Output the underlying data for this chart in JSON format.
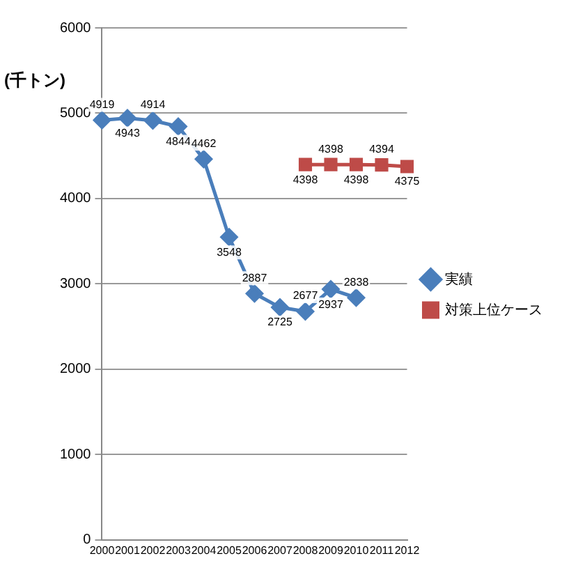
{
  "chart_data": {
    "type": "line",
    "ylabel": "(千トン)",
    "categories": [
      "2000",
      "2001",
      "2002",
      "2003",
      "2004",
      "2005",
      "2006",
      "2007",
      "2008",
      "2009",
      "2010",
      "2011",
      "2012"
    ],
    "series": [
      {
        "name": "実績",
        "color": "#4a7ebb",
        "marker": "diamond",
        "values": [
          4919,
          4943,
          4914,
          4844,
          4462,
          3548,
          2887,
          2725,
          2677,
          2937,
          2838,
          null,
          null
        ]
      },
      {
        "name": "対策上位ケース",
        "color": "#be4b48",
        "marker": "square",
        "values": [
          null,
          null,
          null,
          null,
          null,
          null,
          null,
          null,
          4398,
          4398,
          4398,
          4394,
          4375
        ]
      }
    ],
    "ylim": [
      0,
      6000
    ],
    "yticks": [
      0,
      1000,
      2000,
      3000,
      4000,
      5000,
      6000
    ],
    "grid": "y",
    "legend": "right",
    "data_labels": true
  }
}
